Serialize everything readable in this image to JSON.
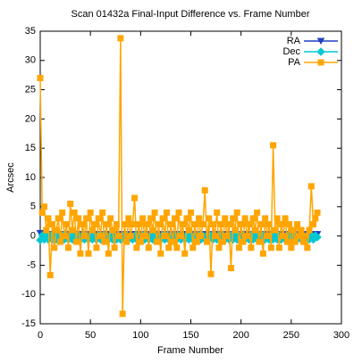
{
  "chart_data": {
    "type": "line",
    "title": "Scan 01432a Final-Input Difference vs. Frame Number",
    "x_label": "Frame Number",
    "y_label": "Arcsec",
    "xlim": [
      0,
      300
    ],
    "xticks": [
      0,
      50,
      100,
      150,
      200,
      250,
      300
    ],
    "ylim": [
      -15,
      35
    ],
    "yticks": [
      -15,
      -10,
      -5,
      0,
      5,
      10,
      15,
      20,
      25,
      30,
      35
    ],
    "grid": false,
    "legend": "top right",
    "x": [
      0,
      2,
      4,
      6,
      8,
      10,
      12,
      14,
      16,
      18,
      20,
      22,
      24,
      26,
      28,
      30,
      32,
      34,
      36,
      38,
      40,
      42,
      44,
      46,
      48,
      50,
      52,
      54,
      56,
      58,
      60,
      62,
      64,
      66,
      68,
      70,
      72,
      74,
      76,
      78,
      80,
      82,
      84,
      86,
      88,
      90,
      92,
      94,
      96,
      98,
      100,
      102,
      104,
      106,
      108,
      110,
      112,
      114,
      116,
      118,
      120,
      122,
      124,
      126,
      128,
      130,
      132,
      134,
      136,
      138,
      140,
      142,
      144,
      146,
      148,
      150,
      152,
      154,
      156,
      158,
      160,
      162,
      164,
      166,
      168,
      170,
      172,
      174,
      176,
      178,
      180,
      182,
      184,
      186,
      188,
      190,
      192,
      194,
      196,
      198,
      200,
      202,
      204,
      206,
      208,
      210,
      212,
      214,
      216,
      218,
      220,
      222,
      224,
      226,
      228,
      230,
      232,
      234,
      236,
      238,
      240,
      242,
      244,
      246,
      248,
      250,
      252,
      254,
      256,
      258,
      260,
      262,
      264,
      266,
      268,
      270,
      272,
      274,
      276
    ],
    "series": [
      {
        "name": "RA",
        "color": "#1f3fc0",
        "marker": "triangle-down",
        "values": [
          0.5,
          0.3,
          0.3,
          0.3,
          0.3,
          0.3,
          0.3,
          0.3,
          0.3,
          0.3,
          0.3,
          0.3,
          0.3,
          0.3,
          0.3,
          0.3,
          0.3,
          0.3,
          0.3,
          0.3,
          0.3,
          0.3,
          0.3,
          0.3,
          0.3,
          0.3,
          0.3,
          0.3,
          0.3,
          0.3,
          0.3,
          0.3,
          0.3,
          0.3,
          0.3,
          0.3,
          0.3,
          0.3,
          0.3,
          0.3,
          0.3,
          0.3,
          0.3,
          0.3,
          0.3,
          0.3,
          0.3,
          0.3,
          0.3,
          0.3,
          0.3,
          0.3,
          0.3,
          0.3,
          0.3,
          0.3,
          0.3,
          0.3,
          0.3,
          0.3,
          0.3,
          0.3,
          0.3,
          0.3,
          0.3,
          0.3,
          0.3,
          0.3,
          0.3,
          0.3,
          0.3,
          0.3,
          0.3,
          0.3,
          0.3,
          0.3,
          0.3,
          0.3,
          0.3,
          0.3,
          0.3,
          0.3,
          0.3,
          0.3,
          0.3,
          0.3,
          0.3,
          0.3,
          0.3,
          0.3,
          0.3,
          0.3,
          0.3,
          0.3,
          0.3,
          0.3,
          0.3,
          0.3,
          0.3,
          0.3,
          0.3,
          0.3,
          0.3,
          0.3,
          0.3,
          0.3,
          0.3,
          0.3,
          0.3,
          0.3,
          0.3,
          0.3,
          0.3,
          0.3,
          0.3,
          0.3,
          0.3,
          0.3,
          0.3,
          0.3,
          0.3,
          0.3,
          0.3,
          0.3,
          0.3,
          0.3,
          0.3,
          0.3,
          0.3,
          0.3,
          0.3,
          0.3,
          0.3,
          0.3,
          0.3,
          0.3,
          0.3,
          0.3,
          0.3
        ]
      },
      {
        "name": "Dec",
        "color": "#00c8d2",
        "marker": "diamond",
        "values": [
          -0.7,
          0.1,
          -0.6,
          0.1,
          -0.6,
          0.1,
          -0.6,
          0.1,
          -0.6,
          0.1,
          -0.6,
          0.1,
          -0.6,
          0.1,
          -0.6,
          0.1,
          -0.6,
          0.1,
          -0.6,
          0.1,
          -0.6,
          0.1,
          -0.6,
          0.1,
          -0.6,
          0.1,
          -0.6,
          0.1,
          -0.6,
          0.1,
          -0.6,
          0.1,
          -0.6,
          0.1,
          -0.6,
          0.1,
          -0.6,
          0.1,
          -0.6,
          0.1,
          -0.6,
          0.1,
          -0.6,
          0.1,
          -0.6,
          0.1,
          -0.6,
          0.1,
          -0.6,
          0.1,
          -0.6,
          0.1,
          -0.6,
          0.1,
          -0.6,
          0.1,
          -0.6,
          0.1,
          -0.6,
          0.1,
          -0.6,
          0.1,
          -0.6,
          0.1,
          -0.6,
          0.1,
          -0.6,
          0.1,
          -0.6,
          0.1,
          -0.6,
          0.1,
          -0.6,
          0.1,
          -0.6,
          0.1,
          -0.6,
          0.1,
          -0.6,
          0.1,
          -0.6,
          0.1,
          -0.6,
          0.1,
          -0.6,
          0.1,
          -0.6,
          0.1,
          -0.6,
          0.1,
          -0.6,
          0.1,
          -0.6,
          0.1,
          -0.6,
          0.1,
          -0.6,
          0.1,
          -0.6,
          0.1,
          -0.6,
          0.1,
          -0.6,
          0.1,
          -0.6,
          0.1,
          -0.6,
          0.1,
          -0.6,
          0.1,
          -0.6,
          0.1,
          -0.6,
          0.1,
          -0.6,
          0.1,
          -0.6,
          0.1,
          -0.6,
          0.1,
          -0.6,
          0.1,
          -0.6,
          0.1,
          -0.6,
          0.1,
          -0.6,
          0.1,
          -0.6,
          0.1,
          -0.6,
          0.1,
          -0.6,
          0.1,
          -0.6,
          0.1,
          -0.6,
          0.1,
          -0.2
        ]
      },
      {
        "name": "PA",
        "color": "#ffa500",
        "marker": "square",
        "values": [
          27,
          4,
          5,
          1,
          3,
          -6.7,
          2,
          -2,
          1,
          3,
          -1,
          4,
          0,
          2,
          -2,
          5.5,
          1,
          4,
          -1,
          3,
          -3,
          2,
          0,
          3,
          -3,
          4,
          1,
          2,
          -2,
          3,
          0,
          4,
          -1,
          2,
          -3,
          3,
          1,
          -2,
          2,
          0,
          33.8,
          -13.3,
          2,
          -1,
          3,
          0,
          2,
          6.5,
          -2,
          2,
          -1,
          3,
          0,
          2,
          -2,
          3,
          1,
          4,
          -1,
          2,
          -3,
          3,
          0,
          4,
          -2,
          2,
          -1,
          3,
          -2,
          4,
          0,
          2,
          -3,
          3,
          1,
          4,
          -2,
          2,
          -1,
          3,
          0,
          2,
          7.8,
          -1,
          3,
          -6.5,
          2,
          0,
          4,
          -2,
          2,
          -1,
          3,
          0,
          2,
          -5.5,
          3,
          1,
          4,
          -2,
          2,
          -1,
          3,
          0,
          2,
          -2,
          3,
          1,
          4,
          -1,
          2,
          -3,
          3,
          0,
          2,
          -2,
          15.5,
          1,
          3,
          -2,
          2,
          0,
          3,
          -1,
          2,
          -2,
          1,
          -1,
          2,
          0,
          1,
          -1,
          0,
          -2,
          1,
          8.5,
          2,
          3,
          4
        ]
      }
    ]
  }
}
